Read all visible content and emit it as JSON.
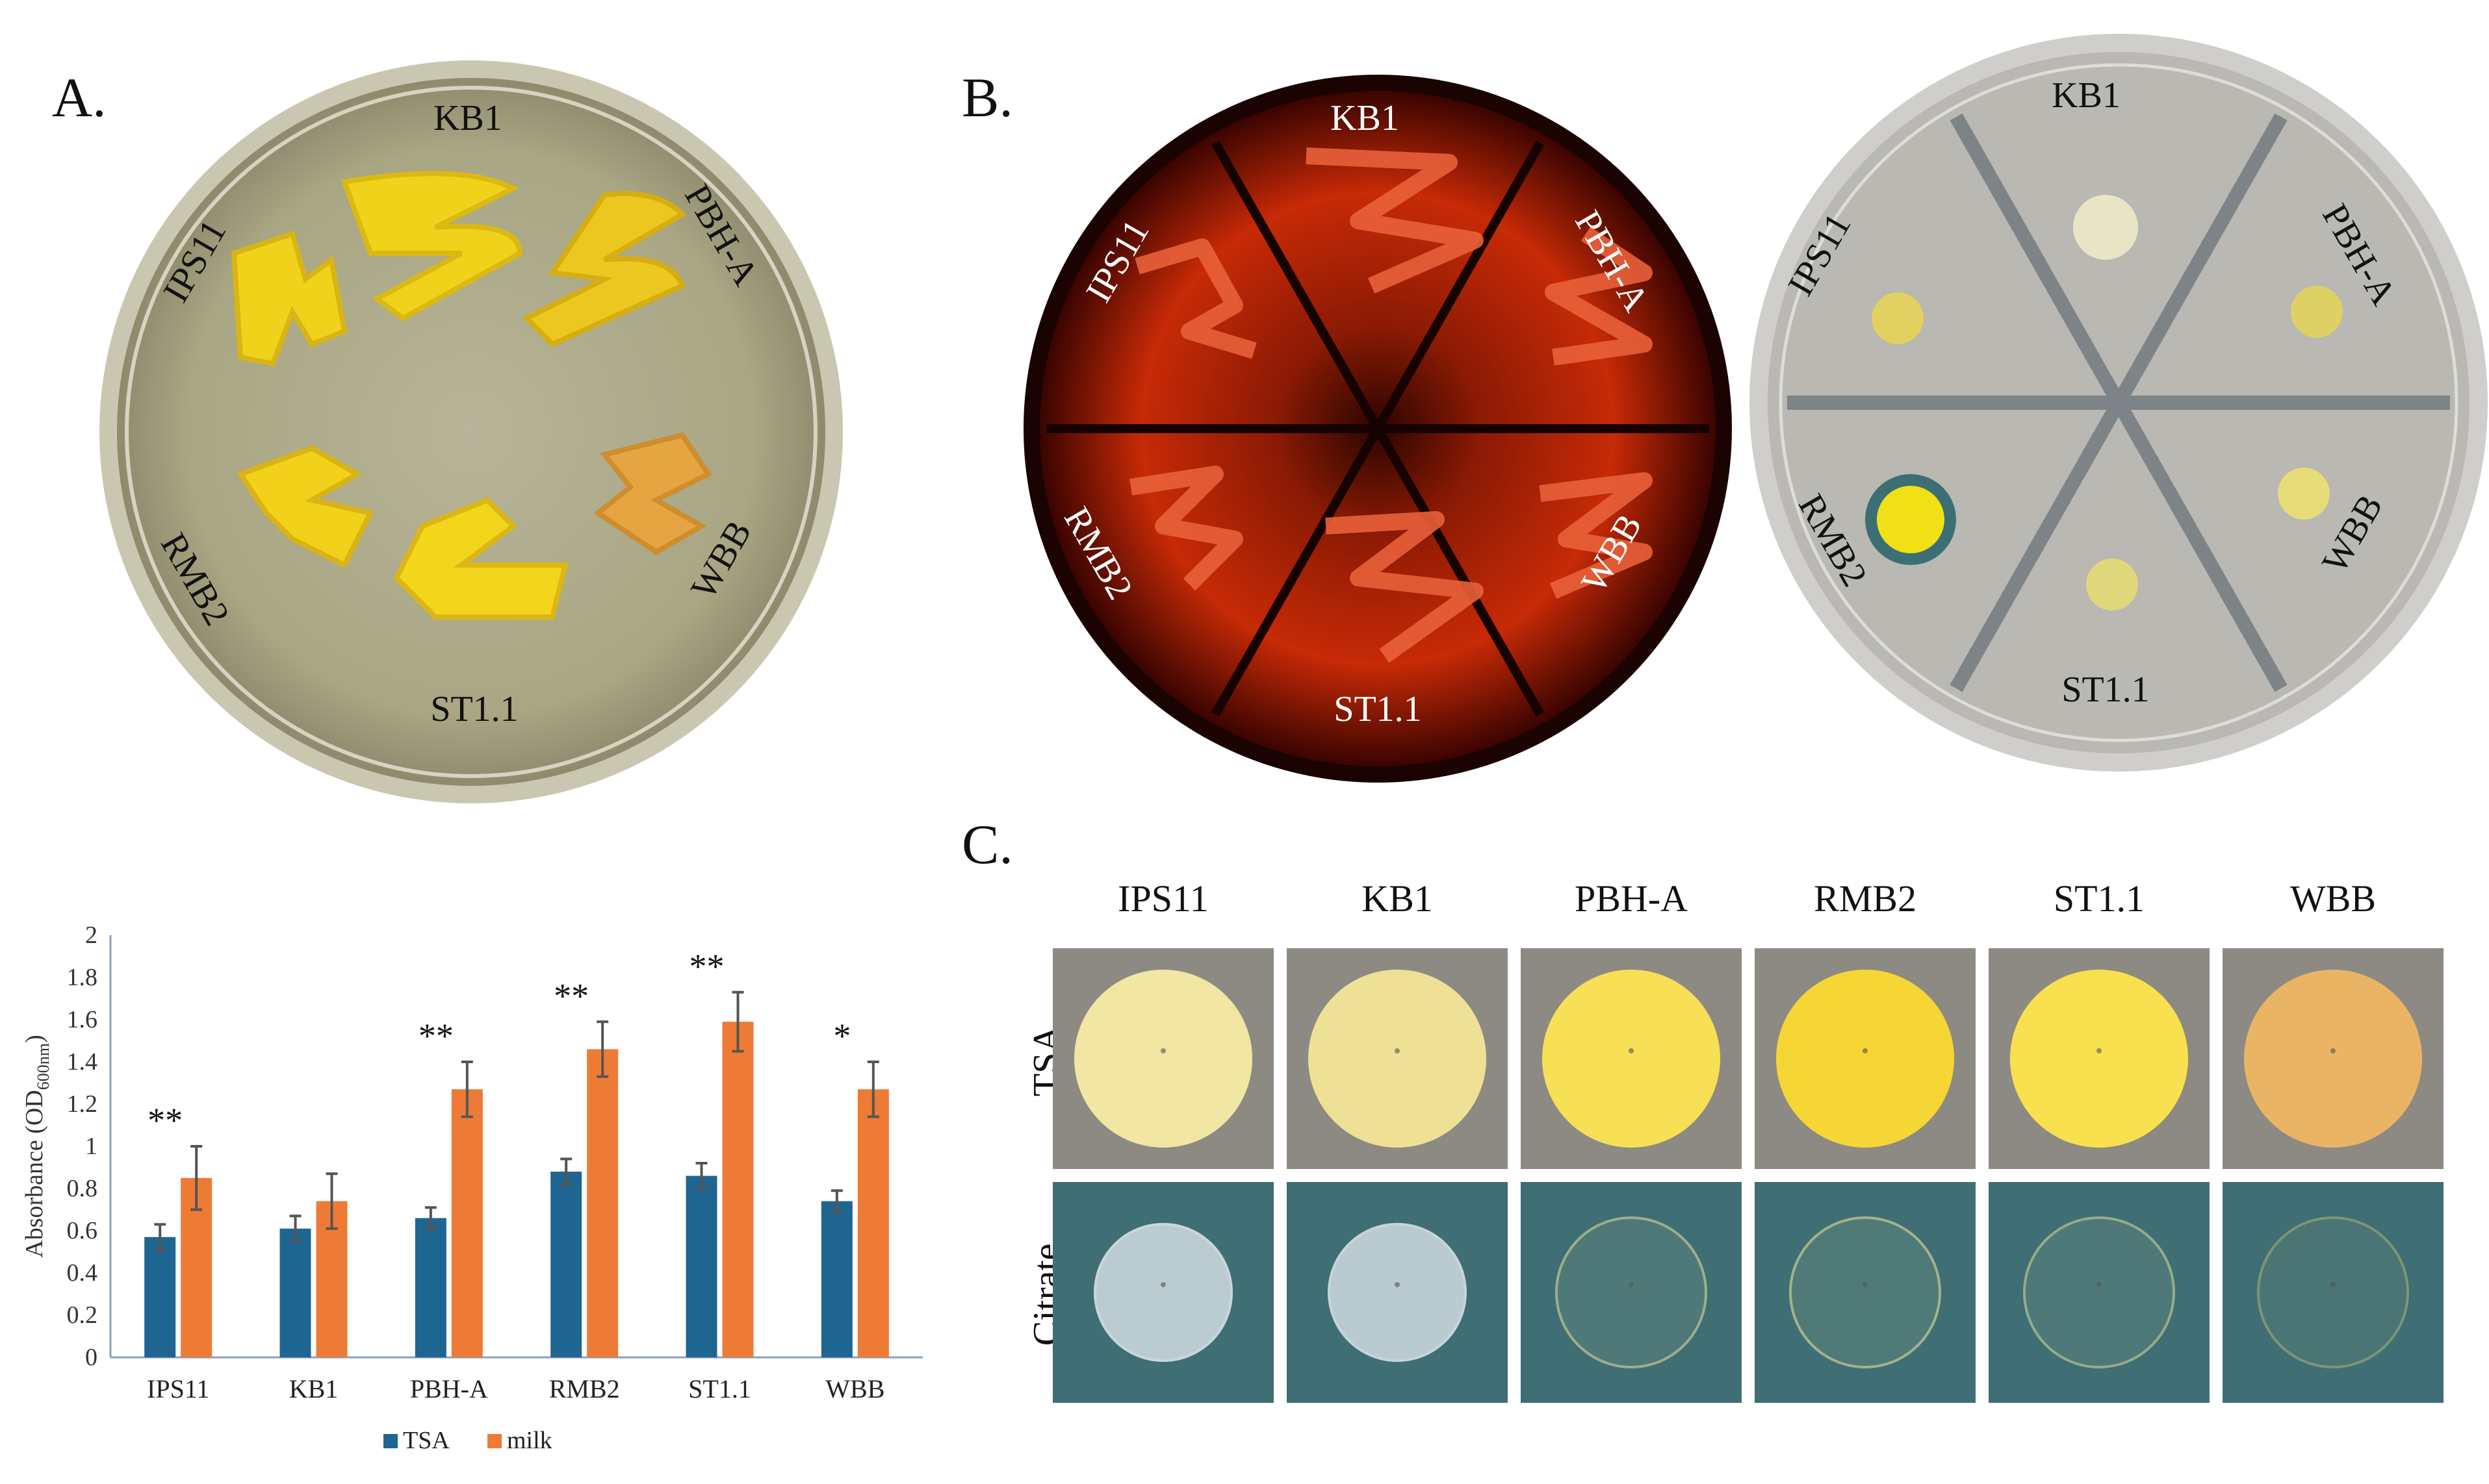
{
  "panels": {
    "a_label": "A.",
    "b_label": "B.",
    "c_label": "C."
  },
  "plate_a": {
    "labels": [
      "KB1",
      "PBH-A",
      "WBB",
      "ST1.1",
      "RMB2",
      "IPS11"
    ]
  },
  "plate_b_left": {
    "labels": [
      "KB1",
      "PBH-A",
      "WBB",
      "ST1.1",
      "RMB2",
      "IPS11"
    ]
  },
  "plate_b_right": {
    "labels": [
      "KB1",
      "PBH-A",
      "WBB",
      "ST1.1",
      "RMB2",
      "IPS11"
    ]
  },
  "panel_c": {
    "columns": [
      "IPS11",
      "KB1",
      "PBH-A",
      "RMB2",
      "ST1.1",
      "WBB"
    ],
    "rows": [
      "TSA",
      "Citrate"
    ],
    "colors": {
      "tsa_bg": "#8d8a84",
      "citrate_bg": "#3f6e74",
      "tsa_colony": [
        "#f1e6a2",
        "#eee196",
        "#f7df56",
        "#f6d634",
        "#f9e04e",
        "#e9b565"
      ],
      "citrate_colony": [
        "#c9d6dc",
        "#c7d4da",
        "#9cae8a",
        "#a2b38b",
        "#97ab88",
        "#7e9474"
      ]
    }
  },
  "chart_data": {
    "type": "bar",
    "categories": [
      "IPS11",
      "KB1",
      "PBH-A",
      "RMB2",
      "ST1.1",
      "WBB"
    ],
    "series": [
      {
        "name": "TSA",
        "values": [
          0.57,
          0.61,
          0.66,
          0.88,
          0.86,
          0.74
        ],
        "errors": [
          0.06,
          0.06,
          0.05,
          0.06,
          0.06,
          0.05
        ],
        "color": "#1f6591"
      },
      {
        "name": "milk",
        "values": [
          0.85,
          0.74,
          1.27,
          1.46,
          1.59,
          1.27
        ],
        "errors": [
          0.15,
          0.13,
          0.13,
          0.13,
          0.14,
          0.13
        ],
        "color": "#ee7b35"
      }
    ],
    "significance": [
      "**",
      "",
      "**",
      "**",
      "**",
      "*"
    ],
    "ylabel_main": "Absorbance (OD",
    "ylabel_sub": "600nm",
    "ylabel_end": ")",
    "ylim": [
      0,
      2
    ],
    "yticks": [
      "0",
      "0.2",
      "0.4",
      "0.6",
      "0.8",
      "1",
      "1.2",
      "1.4",
      "1.6",
      "1.8",
      "2"
    ],
    "legend_position": "bottom"
  }
}
